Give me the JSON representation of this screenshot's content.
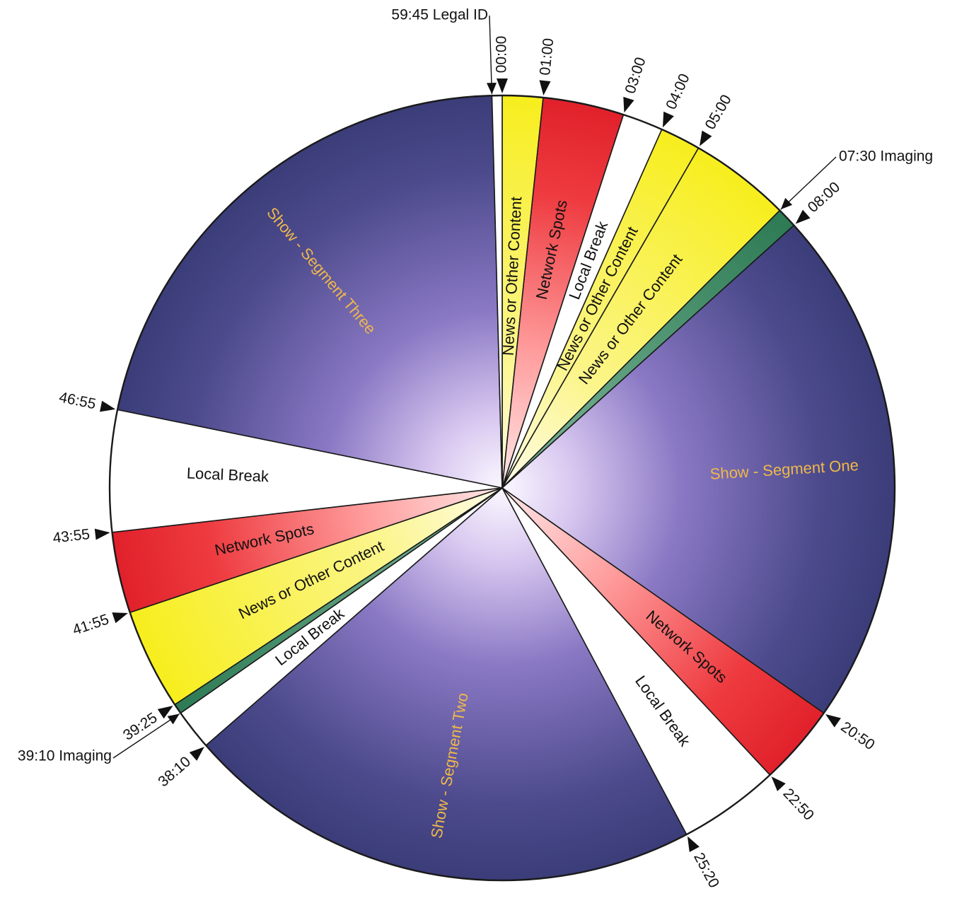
{
  "chart_data": {
    "type": "pie",
    "title": "",
    "unit": "minutes of the hour (mm:ss)",
    "colors": {
      "show": "#3d3f7c",
      "show_highlight": "#f4eefc",
      "news": "#f7ef24",
      "network": "#e8232b",
      "network_highlight": "#ffd6d6",
      "local": "#ffffff",
      "imaging": "#2f7d57",
      "legal": "#ffffff",
      "outline": "#1a1a1a",
      "show_text": "#f0b84a",
      "dark_text": "#111111"
    },
    "segments": [
      {
        "start": "00:00",
        "end": "01:00",
        "label": "News or Other Content",
        "kind": "news"
      },
      {
        "start": "01:00",
        "end": "03:00",
        "label": "Network Spots",
        "kind": "network"
      },
      {
        "start": "03:00",
        "end": "04:00",
        "label": "Local Break",
        "kind": "local"
      },
      {
        "start": "04:00",
        "end": "05:00",
        "label": "News or Other Content",
        "kind": "news"
      },
      {
        "start": "05:00",
        "end": "07:30",
        "label": "News or Other Content",
        "kind": "news"
      },
      {
        "start": "07:30",
        "end": "08:00",
        "label": "",
        "kind": "imaging"
      },
      {
        "start": "08:00",
        "end": "20:50",
        "label": "Show - Segment One",
        "kind": "show"
      },
      {
        "start": "20:50",
        "end": "22:50",
        "label": "Network Spots",
        "kind": "network"
      },
      {
        "start": "22:50",
        "end": "25:20",
        "label": "Local Break",
        "kind": "local"
      },
      {
        "start": "25:20",
        "end": "38:10",
        "label": "Show - Segment Two",
        "kind": "show"
      },
      {
        "start": "38:10",
        "end": "39:10",
        "label": "Local Break",
        "kind": "local"
      },
      {
        "start": "39:10",
        "end": "39:25",
        "label": "",
        "kind": "imaging"
      },
      {
        "start": "39:25",
        "end": "41:55",
        "label": "News or Other Content",
        "kind": "news"
      },
      {
        "start": "41:55",
        "end": "43:55",
        "label": "Network Spots",
        "kind": "network"
      },
      {
        "start": "43:55",
        "end": "46:55",
        "label": "Local Break",
        "kind": "local"
      },
      {
        "start": "46:55",
        "end": "59:45",
        "label": "Show - Segment Three",
        "kind": "show"
      },
      {
        "start": "59:45",
        "end": "60:00",
        "label": "",
        "kind": "legal"
      }
    ],
    "ticks": [
      "00:00",
      "01:00",
      "03:00",
      "04:00",
      "05:00",
      "08:00",
      "20:50",
      "22:50",
      "25:20",
      "38:10",
      "39:25",
      "41:55",
      "43:55",
      "46:55"
    ],
    "callouts": [
      {
        "time": "59:45",
        "label": "59:45 Legal ID"
      },
      {
        "time": "07:30",
        "label": "07:30 Imaging"
      },
      {
        "time": "39:10",
        "label": "39:10 Imaging"
      }
    ]
  }
}
